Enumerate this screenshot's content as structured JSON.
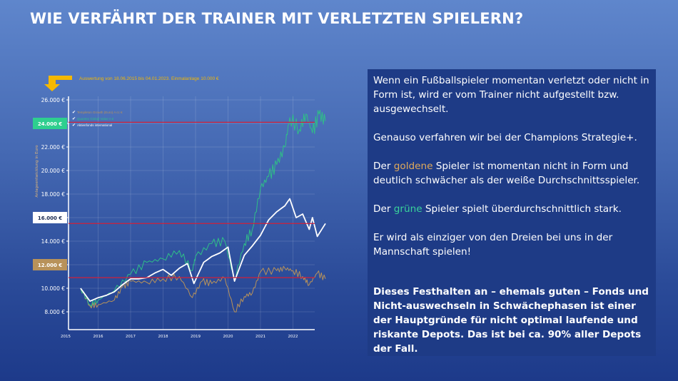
{
  "title": "WIE VERFÄHRT DER TRAINER MIT VERLETZTEN SPIELERN?",
  "colors": {
    "gold": "#b8925a",
    "green": "#2fbf87",
    "white": "#ffffff",
    "refline": "#d0203a",
    "arrow": "#f5b800"
  },
  "panel": {
    "p1": "Wenn ein Fußballspieler momentan verletzt oder nicht in Form ist, wird er vom Trainer nicht aufgestellt bzw. ausgewechselt.",
    "p2": "Genauso verfahren wir bei der Champions Strategie+.",
    "p3a": "Der ",
    "p3gold": "goldene",
    "p3b": " Spieler ist momentan nicht in Form und deutlich schwächer als der weiße Durchschnittsspieler.",
    "p4a": "Der ",
    "p4green": "grüne",
    "p4b": " Spieler spielt überdurchschnittlich stark.",
    "p5": "Er wird als einziger von den Dreien bei uns in der Mannschaft spielen!",
    "p6": "Dieses Festhalten an – ehemals guten – Fonds und Nicht-auswechseln in Schwächephasen ist einer der Hauptgründe für nicht optimal laufende und riskante Depots. Das ist bei ca. 90% aller Depots der Fall."
  },
  "chart_data": {
    "type": "line",
    "subtitle": "Auswertung von 18.06.2015 bis 04.01.2023. Einmalanlage 10.000 €",
    "ylabel": "Anlageentwicklung in Euro",
    "ylim": [
      7000,
      26000
    ],
    "xlim": [
      2015.0,
      2023.0
    ],
    "grid": true,
    "legend_placement": "top-left",
    "y_ticks": [
      "8.000 €",
      "10.000 €",
      "12.000 €",
      "14.000 €",
      "16.000 €",
      "18.000 €",
      "20.000 €",
      "22.000 €",
      "24.000 €",
      "26.000 €"
    ],
    "y_tick_values": [
      8000,
      10000,
      12000,
      14000,
      16000,
      18000,
      20000,
      22000,
      24000,
      26000
    ],
    "highlight_ticks": [
      {
        "label": "24.000 €",
        "value": 24000,
        "color": "#2ecf8f"
      },
      {
        "label": "16.000 €",
        "value": 16000,
        "color": "#ffffff"
      },
      {
        "label": "12.000 €",
        "value": 12000,
        "color": "#b8925a"
      }
    ],
    "x_ticks": [
      "2015",
      "2016",
      "2017",
      "2018",
      "2019",
      "2020",
      "2021",
      "2022"
    ],
    "reference_lines": [
      24100,
      15500,
      10900
    ],
    "series": [
      {
        "name": "Templeton Growth (Euro) A cc €",
        "color": "#b8925a",
        "x": [
          2015.46,
          2015.75,
          2016.0,
          2016.5,
          2016.75,
          2017.0,
          2017.5,
          2018.0,
          2018.5,
          2018.9,
          2019.2,
          2019.5,
          2019.9,
          2020.2,
          2020.5,
          2020.75,
          2021.0,
          2021.5,
          2021.75,
          2022.0,
          2022.3,
          2022.5,
          2022.75,
          2023.0
        ],
        "y": [
          10000,
          8500,
          8600,
          9000,
          10100,
          10600,
          10500,
          10800,
          11000,
          9200,
          10600,
          10400,
          10900,
          8000,
          9300,
          9600,
          11400,
          11500,
          11700,
          11500,
          11000,
          10300,
          11300,
          10800
        ]
      },
      {
        "name": "Quantex Global Value A €",
        "color": "#2fbf87",
        "x": [
          2015.46,
          2015.75,
          2016.0,
          2016.5,
          2017.0,
          2017.5,
          2018.0,
          2018.5,
          2018.9,
          2019.0,
          2019.5,
          2019.9,
          2020.2,
          2020.5,
          2020.75,
          2021.0,
          2021.25,
          2021.5,
          2021.75,
          2021.9,
          2022.2,
          2022.4,
          2022.6,
          2022.8,
          2023.0
        ],
        "y": [
          10000,
          8600,
          9000,
          9800,
          11200,
          12200,
          12500,
          13200,
          11500,
          12700,
          13800,
          14000,
          10700,
          13800,
          15000,
          18500,
          19500,
          20500,
          22000,
          24500,
          23500,
          24800,
          23200,
          24800,
          24200
        ]
      },
      {
        "name": "Aktienfonds international",
        "color": "#ffffff",
        "x": [
          2015.46,
          2015.75,
          2016.0,
          2016.25,
          2016.5,
          2016.75,
          2017.0,
          2017.25,
          2017.5,
          2017.75,
          2018.0,
          2018.25,
          2018.5,
          2018.75,
          2018.95,
          2019.25,
          2019.5,
          2019.75,
          2020.0,
          2020.2,
          2020.5,
          2020.75,
          2021.0,
          2021.25,
          2021.5,
          2021.75,
          2021.9,
          2022.1,
          2022.3,
          2022.5,
          2022.6,
          2022.75,
          2023.0
        ],
        "y": [
          10000,
          8900,
          9200,
          9400,
          9700,
          10300,
          10800,
          10800,
          10900,
          11300,
          11600,
          11100,
          11700,
          12100,
          10400,
          12200,
          12700,
          13000,
          13500,
          10600,
          12800,
          13600,
          14500,
          15800,
          16500,
          17000,
          17600,
          16000,
          16300,
          15000,
          16000,
          14400,
          15500
        ]
      }
    ]
  }
}
